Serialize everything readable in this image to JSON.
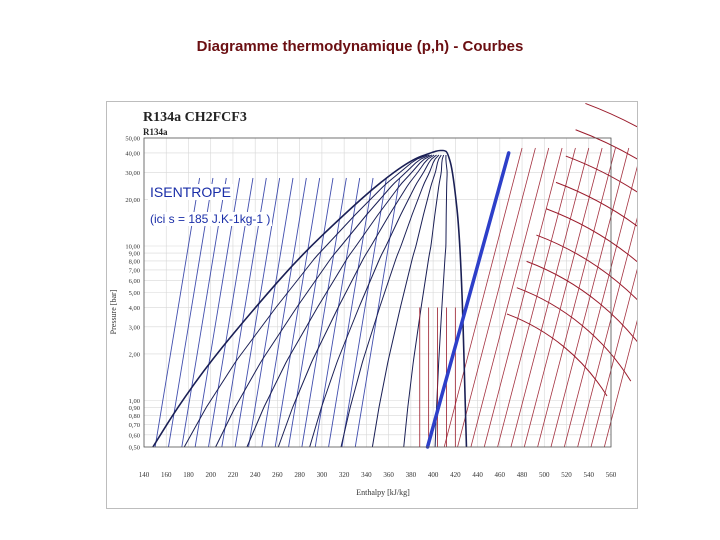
{
  "slide": {
    "title": "Diagramme thermodynamique (p,h) - Courbes"
  },
  "annotation": {
    "label": "ISENTROPE",
    "note": "(ici s = 185 J.K-1kg-1 )"
  },
  "chart_data": {
    "type": "line",
    "title": "R134a    CH2FCF3",
    "subtitle": "R134a",
    "xlabel": "Enthalpy [kJ/kg]",
    "ylabel": "Pressure [bar]",
    "xlim": [
      140,
      560
    ],
    "ylim": [
      0.5,
      50
    ],
    "y_scale": "log",
    "grid": true,
    "x_ticks": [
      140,
      160,
      180,
      200,
      220,
      240,
      260,
      280,
      300,
      320,
      340,
      360,
      380,
      400,
      420,
      440,
      460,
      480,
      500,
      520,
      540,
      560
    ],
    "y_ticks": [
      0.5,
      0.6,
      0.7,
      0.8,
      0.9,
      1.0,
      2.0,
      3.0,
      4.0,
      5.0,
      6.0,
      7.0,
      8.0,
      9.0,
      10.0,
      20.0,
      30.0,
      40.0,
      50.0
    ],
    "y_tick_labels": [
      "0,50",
      "0,60",
      "0,70",
      "0,80",
      "0,90",
      "1,00",
      "2,00",
      "3,00",
      "4,00",
      "5,00",
      "6,00",
      "7,00",
      "8,00",
      "9,00",
      "10,00",
      "20,00",
      "30,00",
      "40,00",
      "50,00"
    ],
    "isentrope": {
      "s": 185,
      "x": [
        395,
        468
      ],
      "y": [
        0.5,
        40
      ]
    },
    "saturation_dome": {
      "x": [
        148,
        170,
        200,
        240,
        280,
        320,
        350,
        380,
        400,
        405,
        408,
        410,
        413,
        418,
        425,
        430
      ],
      "y": [
        0.5,
        0.9,
        1.8,
        4.0,
        8.5,
        16,
        25,
        36,
        40.6,
        41.5,
        41.5,
        41.5,
        40.5,
        30,
        10,
        0.5
      ]
    },
    "colors": {
      "title": "#6b0f12",
      "dome": "#1a1f55",
      "isotherms": "#9b1c2c",
      "isentrope": "#2d3fc9",
      "quality_lines": "#1a1f55",
      "liquid_lines": "#2030a0",
      "annotation": "#1a2ea8"
    }
  }
}
